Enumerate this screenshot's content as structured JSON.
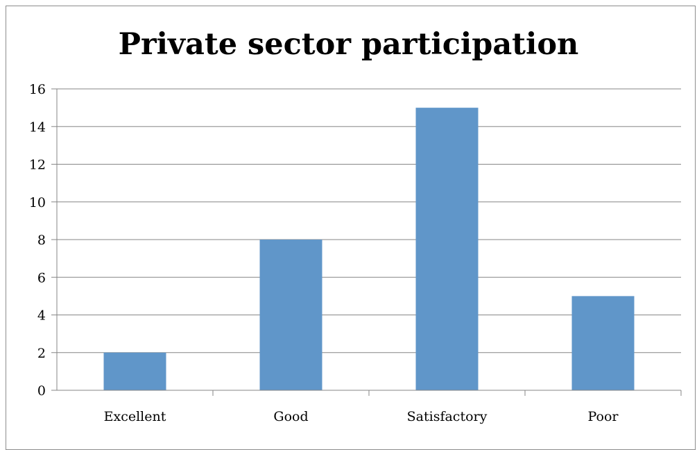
{
  "chart_data": {
    "type": "bar",
    "title": "Private sector participation",
    "categories": [
      "Excellent",
      "Good",
      "Satisfactory",
      "Poor"
    ],
    "values": [
      2,
      8,
      15,
      5
    ],
    "xlabel": "",
    "ylabel": "",
    "ylim": [
      0,
      16
    ],
    "yticks": [
      0,
      2,
      4,
      6,
      8,
      10,
      12,
      14,
      16
    ],
    "grid": true,
    "legend": "none",
    "bar_color": "#6096c9",
    "gridline_color": "#868686"
  }
}
